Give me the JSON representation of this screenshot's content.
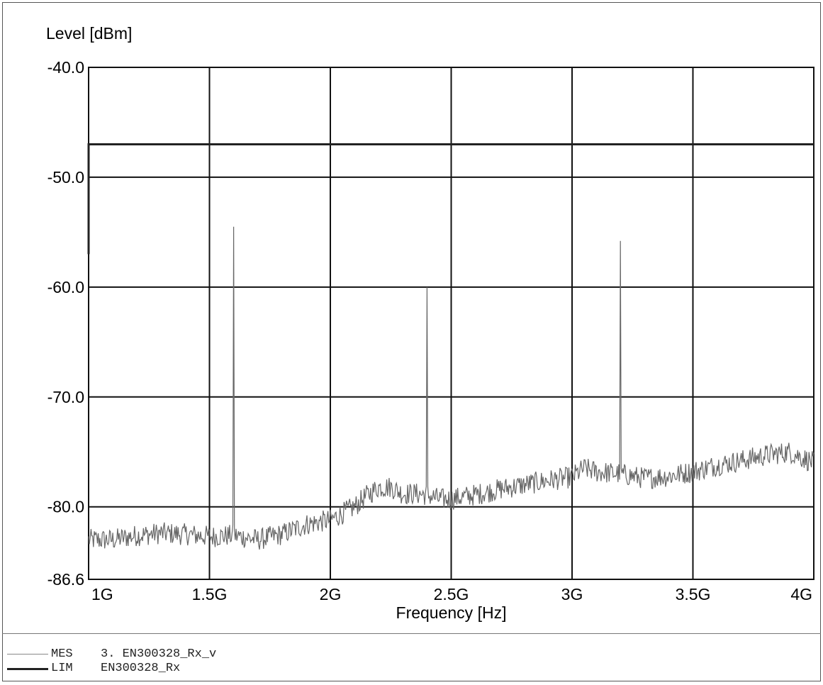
{
  "chart_data": {
    "type": "line",
    "ylabel": "Level [dBm]",
    "xlabel": "Frequency [Hz]",
    "ylim": [
      -86.6,
      -40.0
    ],
    "xlim": [
      1.0,
      4.0
    ],
    "y_ticks": [
      -40.0,
      -50.0,
      -60.0,
      -70.0,
      -80.0,
      -86.6
    ],
    "y_tick_labels": [
      "-40.0",
      "-50.0",
      "-60.0",
      "-70.0",
      "-80.0",
      "-86.6"
    ],
    "x_ticks": [
      1.0,
      1.5,
      2.0,
      2.5,
      3.0,
      3.5,
      4.0
    ],
    "x_tick_labels": [
      "1G",
      "1.5G",
      "2G",
      "2.5G",
      "3G",
      "3.5G",
      "4G"
    ],
    "grid": true,
    "x_units": "GHz",
    "series": [
      {
        "name": "MES",
        "color": "#666666",
        "noise_amplitude": 1.0,
        "points": [
          [
            1.0,
            -83.0
          ],
          [
            1.1,
            -83.0
          ],
          [
            1.2,
            -82.6
          ],
          [
            1.3,
            -82.4
          ],
          [
            1.4,
            -82.5
          ],
          [
            1.5,
            -82.7
          ],
          [
            1.6,
            -82.6
          ],
          [
            1.7,
            -83.0
          ],
          [
            1.8,
            -82.5
          ],
          [
            1.9,
            -81.6
          ],
          [
            2.0,
            -81.2
          ],
          [
            2.05,
            -80.6
          ],
          [
            2.1,
            -80.0
          ],
          [
            2.15,
            -79.0
          ],
          [
            2.2,
            -78.2
          ],
          [
            2.25,
            -78.2
          ],
          [
            2.3,
            -78.8
          ],
          [
            2.35,
            -78.8
          ],
          [
            2.4,
            -78.9
          ],
          [
            2.45,
            -79.3
          ],
          [
            2.5,
            -79.3
          ],
          [
            2.6,
            -78.9
          ],
          [
            2.7,
            -78.4
          ],
          [
            2.8,
            -78.0
          ],
          [
            2.9,
            -77.6
          ],
          [
            3.0,
            -77.3
          ],
          [
            3.05,
            -76.5
          ],
          [
            3.1,
            -76.8
          ],
          [
            3.2,
            -77.0
          ],
          [
            3.3,
            -77.4
          ],
          [
            3.4,
            -77.2
          ],
          [
            3.5,
            -76.8
          ],
          [
            3.6,
            -76.2
          ],
          [
            3.7,
            -75.8
          ],
          [
            3.8,
            -75.3
          ],
          [
            3.9,
            -75.0
          ],
          [
            4.0,
            -76.0
          ]
        ],
        "spikes": [
          {
            "x": 1.6,
            "y": -54.5
          },
          {
            "x": 2.4,
            "y": -60.0
          },
          {
            "x": 3.2,
            "y": -55.8
          }
        ]
      },
      {
        "name": "LIM",
        "color": "#222222",
        "points": [
          [
            1.0,
            -57.0
          ],
          [
            1.0,
            -47.0
          ],
          [
            4.0,
            -47.0
          ]
        ]
      }
    ]
  },
  "legend": [
    {
      "code": "MES",
      "text": "3. EN300328_Rx_v",
      "color": "#888888",
      "weight": 1
    },
    {
      "code": "LIM",
      "text": "EN300328_Rx",
      "color": "#222222",
      "weight": 3
    }
  ]
}
